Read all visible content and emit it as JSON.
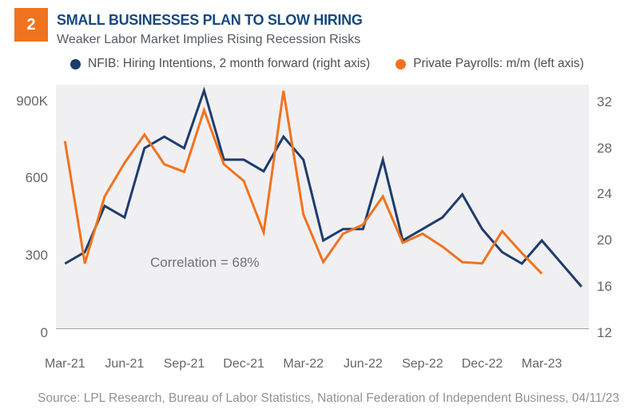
{
  "page": {
    "slide_number": "2",
    "title": "SMALL BUSINESSES PLAN TO SLOW HIRING",
    "subtitle": "Weaker Labor Market Implies Rising Recession Risks",
    "source": "Source: LPL Research, Bureau of Labor Statistics, National Federation of Independent Business,  04/11/23",
    "annotation": "Correlation = 68%"
  },
  "colors": {
    "accent_orange": "#F0731F",
    "line_navy": "#1E3C6E",
    "title_navy": "#17497D",
    "plot_background": "#F0F0F2",
    "tick_text": "#63666A"
  },
  "legend": [
    {
      "label": "NFIB: Hiring Intentions, 2 month forward (right axis)",
      "color": "#1E3C6E"
    },
    {
      "label": "Private Payrolls: m/m (left axis)",
      "color": "#F0731F"
    }
  ],
  "chart_data": {
    "type": "line",
    "title": "SMALL BUSINESSES PLAN TO SLOW HIRING",
    "subtitle": "Weaker Labor Market Implies Rising Recession Risks",
    "grid": false,
    "legend_position": "top",
    "annotation": {
      "text": "Correlation = 68%",
      "near_x": "Sep-21",
      "near_y_left": 280
    },
    "x": [
      "Mar-21",
      "Apr-21",
      "May-21",
      "Jun-21",
      "Jul-21",
      "Aug-21",
      "Sep-21",
      "Oct-21",
      "Nov-21",
      "Dec-21",
      "Jan-22",
      "Feb-22",
      "Mar-22",
      "Apr-22",
      "May-22",
      "Jun-22",
      "Jul-22",
      "Aug-22",
      "Sep-22",
      "Oct-22",
      "Nov-22",
      "Dec-22",
      "Jan-23",
      "Feb-23",
      "Mar-23",
      "Apr-23",
      "May-23"
    ],
    "x_tick_labels": [
      "Mar-21",
      "Jun-21",
      "Sep-21",
      "Dec-21",
      "Mar-22",
      "Jun-22",
      "Sep-22",
      "Dec-22",
      "Mar-23"
    ],
    "left_axis": {
      "tick_labels": [
        "900K",
        "600",
        "300",
        "0"
      ],
      "tick_values": [
        900,
        600,
        300,
        0
      ],
      "range": [
        0,
        900
      ],
      "units": "thousands"
    },
    "right_axis": {
      "tick_labels": [
        "32",
        "28",
        "24",
        "20",
        "16",
        "12"
      ],
      "tick_values": [
        32,
        28,
        24,
        20,
        16,
        12
      ],
      "range": [
        12,
        32
      ]
    },
    "series": [
      {
        "name": "NFIB: Hiring Intentions, 2 month forward (right axis)",
        "axis": "right",
        "color": "#1E3C6E",
        "values": [
          18,
          19,
          23,
          22,
          28,
          29,
          28,
          33,
          27,
          27,
          26,
          29,
          27,
          20,
          21,
          21,
          27,
          20,
          21,
          22,
          24,
          21,
          19,
          18,
          20,
          18,
          16
        ]
      },
      {
        "name": "Private Payrolls: m/m (left axis)",
        "axis": "left",
        "color": "#F0731F",
        "values": [
          745,
          270,
          530,
          660,
          770,
          655,
          625,
          865,
          655,
          590,
          390,
          940,
          460,
          275,
          385,
          420,
          530,
          350,
          385,
          335,
          275,
          270,
          395,
          310,
          230,
          null,
          null
        ]
      }
    ]
  }
}
